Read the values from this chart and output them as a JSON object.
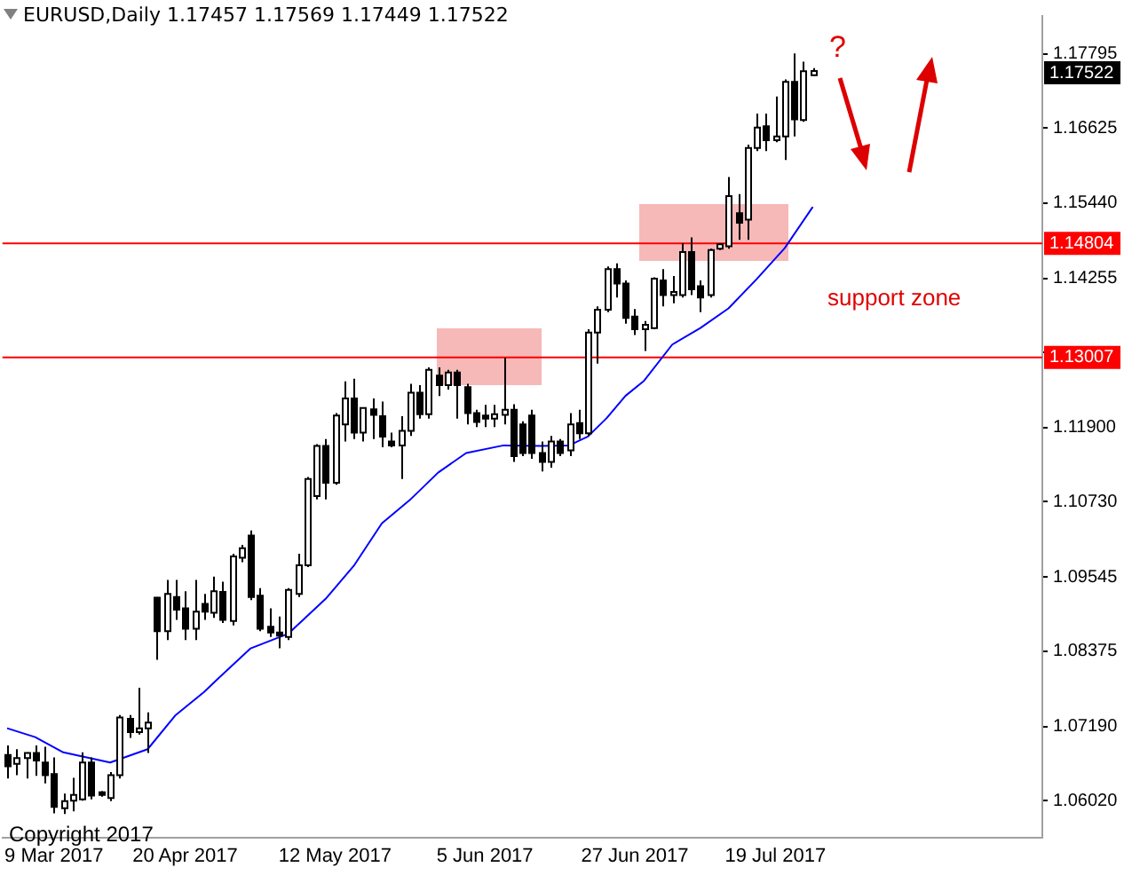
{
  "chart_data": {
    "type": "candlestick",
    "title": "EURUSD,Daily 1.17457 1.17569 1.17449 1.17522",
    "categories": [
      null,
      null,
      null,
      null,
      null,
      "9 Mar 2017",
      null,
      null,
      null,
      null,
      null,
      null,
      null,
      null,
      null,
      null,
      null,
      null,
      null,
      "20 Apr 2017",
      null,
      null,
      null,
      null,
      null,
      null,
      null,
      null,
      null,
      null,
      null,
      null,
      null,
      null,
      null,
      "12 May 2017",
      null,
      null,
      null,
      null,
      null,
      null,
      null,
      null,
      null,
      null,
      null,
      null,
      null,
      null,
      null,
      "5 Jun 2017",
      null,
      null,
      null,
      null,
      null,
      null,
      null,
      null,
      null,
      null,
      null,
      null,
      null,
      null,
      null,
      "27 Jun 2017",
      null,
      null,
      null,
      null,
      null,
      null,
      null,
      null,
      null,
      null,
      null,
      null,
      null,
      null,
      "19 Jul 2017",
      null,
      null,
      null,
      null,
      null,
      null,
      null,
      null,
      null,
      null,
      null,
      null,
      null,
      null,
      null,
      null,
      null,
      null,
      null,
      null,
      null,
      null,
      null,
      null,
      null,
      null,
      null,
      null
    ],
    "ohlc": [
      [
        1.0674,
        1.0689,
        1.0637,
        1.0656
      ],
      [
        1.066,
        1.0683,
        1.0642,
        1.0669
      ],
      [
        1.0669,
        1.0678,
        1.0637,
        1.0677
      ],
      [
        1.0677,
        1.0689,
        1.0641,
        1.0665
      ],
      [
        1.0662,
        1.0687,
        1.0629,
        1.0642
      ],
      [
        1.0644,
        1.067,
        1.0582,
        1.0592
      ],
      [
        1.059,
        1.0613,
        1.0581,
        1.0601
      ],
      [
        1.0602,
        1.0638,
        1.0585,
        1.0611
      ],
      [
        1.0604,
        1.0678,
        1.0602,
        1.0662
      ],
      [
        1.0662,
        1.067,
        1.0604,
        1.061
      ],
      [
        1.0615,
        1.0617,
        1.0608,
        1.0611
      ],
      [
        1.0606,
        1.0647,
        1.0601,
        1.0642
      ],
      [
        1.0642,
        1.0737,
        1.0637,
        1.0733
      ],
      [
        1.0731,
        1.0737,
        1.0701,
        1.071
      ],
      [
        1.071,
        1.078,
        1.0706,
        1.0716
      ],
      [
        1.0716,
        1.0741,
        1.0677,
        1.0725
      ],
      [
        1.0922,
        1.0923,
        1.0824,
        1.0869
      ],
      [
        1.0869,
        1.095,
        1.0855,
        1.0928
      ],
      [
        1.0923,
        1.095,
        1.0887,
        1.0903
      ],
      [
        1.0905,
        1.0932,
        1.0855,
        1.0873
      ],
      [
        1.0873,
        1.095,
        1.0855,
        1.09
      ],
      [
        1.0912,
        1.0928,
        1.0887,
        1.09
      ],
      [
        1.0898,
        1.0955,
        1.089,
        1.0932
      ],
      [
        1.0931,
        1.0947,
        1.0882,
        1.0887
      ],
      [
        1.0885,
        1.0991,
        1.0878,
        1.0987
      ],
      [
        1.0985,
        1.1005,
        1.0978,
        1.1
      ],
      [
        1.102,
        1.1028,
        1.0918,
        1.0923
      ],
      [
        1.0925,
        1.0937,
        1.0869,
        1.0873
      ],
      [
        1.0876,
        1.0905,
        1.086,
        1.0867
      ],
      [
        1.0867,
        1.0892,
        1.0842,
        1.0862
      ],
      [
        1.086,
        1.0937,
        1.0855,
        1.0934
      ],
      [
        1.0928,
        1.0991,
        1.0923,
        1.0973
      ],
      [
        1.0973,
        1.1112,
        1.097,
        1.1109
      ],
      [
        1.1082,
        1.1164,
        1.1077,
        1.1161
      ],
      [
        1.1161,
        1.1172,
        1.1077,
        1.1103
      ],
      [
        1.1103,
        1.1213,
        1.11,
        1.1209
      ],
      [
        1.1195,
        1.1263,
        1.1168,
        1.1236
      ],
      [
        1.1236,
        1.1267,
        1.1172,
        1.1182
      ],
      [
        1.1182,
        1.1222,
        1.1168,
        1.1221
      ],
      [
        1.1219,
        1.1236,
        1.1172,
        1.121
      ],
      [
        1.1208,
        1.1231,
        1.1159,
        1.1176
      ],
      [
        1.1168,
        1.1182,
        1.1159,
        1.1162
      ],
      [
        1.1162,
        1.1208,
        1.1109,
        1.1185
      ],
      [
        1.1185,
        1.1259,
        1.1177,
        1.1245
      ],
      [
        1.1245,
        1.1257,
        1.1204,
        1.1211
      ],
      [
        1.1211,
        1.1285,
        1.1204,
        1.1281
      ],
      [
        1.1272,
        1.1285,
        1.124,
        1.1257
      ],
      [
        1.1257,
        1.1281,
        1.125,
        1.1277
      ],
      [
        1.1277,
        1.1281,
        1.1204,
        1.1257
      ],
      [
        1.1254,
        1.1259,
        1.1195,
        1.1213
      ],
      [
        1.1213,
        1.1218,
        1.1191,
        1.1199
      ],
      [
        1.1209,
        1.1226,
        1.1191,
        1.1204
      ],
      [
        1.1204,
        1.1226,
        1.1191,
        1.1211
      ],
      [
        1.121,
        1.13,
        1.1195,
        1.1218
      ],
      [
        1.1218,
        1.1227,
        1.1136,
        1.1145
      ],
      [
        1.1195,
        1.12,
        1.1145,
        1.115
      ],
      [
        1.1209,
        1.1218,
        1.1141,
        1.115
      ],
      [
        1.115,
        1.1168,
        1.1121,
        1.1136
      ],
      [
        1.1136,
        1.1177,
        1.1127,
        1.1168
      ],
      [
        1.1168,
        1.1172,
        1.1145,
        1.115
      ],
      [
        1.1154,
        1.1213,
        1.1145,
        1.1195
      ],
      [
        1.1197,
        1.1218,
        1.1172,
        1.1181
      ],
      [
        1.1181,
        1.1345,
        1.1177,
        1.134
      ],
      [
        1.134,
        1.1381,
        1.1291,
        1.1376
      ],
      [
        1.1376,
        1.1444,
        1.1372,
        1.144
      ],
      [
        1.144,
        1.1449,
        1.1395,
        1.1417
      ],
      [
        1.1417,
        1.1422,
        1.1354,
        1.1363
      ],
      [
        1.1365,
        1.1377,
        1.1336,
        1.1345
      ],
      [
        1.1345,
        1.1358,
        1.1311,
        1.1352
      ],
      [
        1.1347,
        1.1427,
        1.1345,
        1.1425
      ],
      [
        1.1422,
        1.144,
        1.1381,
        1.1399
      ],
      [
        1.1399,
        1.1429,
        1.1386,
        1.1404
      ],
      [
        1.1399,
        1.1481,
        1.1395,
        1.1467
      ],
      [
        1.1467,
        1.149,
        1.1399,
        1.1408
      ],
      [
        1.1413,
        1.1422,
        1.1372,
        1.1395
      ],
      [
        1.1399,
        1.1472,
        1.1395,
        1.147
      ],
      [
        1.1472,
        1.1481,
        1.147,
        1.1479
      ],
      [
        1.1476,
        1.1585,
        1.1472,
        1.1555
      ],
      [
        1.1528,
        1.1558,
        1.1486,
        1.1513
      ],
      [
        1.1518,
        1.1636,
        1.1486,
        1.1631
      ],
      [
        1.1631,
        1.1685,
        1.1626,
        1.1663
      ],
      [
        1.1665,
        1.1685,
        1.1626,
        1.1643
      ],
      [
        1.1643,
        1.1712,
        1.164,
        1.1649
      ],
      [
        1.1649,
        1.1739,
        1.1612,
        1.1735
      ],
      [
        1.1735,
        1.178,
        1.1649,
        1.1676
      ],
      [
        1.1675,
        1.1767,
        1.1672,
        1.1752
      ],
      [
        1.17457,
        1.17569,
        1.17449,
        1.17522
      ],
      null,
      null,
      null,
      null,
      null,
      null,
      null,
      null,
      null,
      null,
      null,
      null,
      null,
      null,
      null,
      null,
      null,
      null,
      null,
      null,
      null,
      null,
      null,
      null
    ],
    "series": [
      {
        "type": "line",
        "color": "#0000ff",
        "values": [
          1.0716,
          null,
          null,
          1.0702,
          null,
          null,
          1.0678,
          null,
          null,
          null,
          null,
          1.0662,
          null,
          null,
          null,
          1.0683,
          null,
          null,
          1.0737,
          null,
          null,
          1.0773,
          null,
          1.0801,
          null,
          null,
          1.0842,
          null,
          null,
          null,
          1.0865,
          null,
          null,
          null,
          1.092,
          null,
          null,
          1.0972,
          null,
          null,
          1.1039,
          null,
          null,
          1.1076,
          null,
          null,
          1.1119,
          null,
          null,
          1.115,
          null,
          null,
          null,
          1.1162,
          null,
          null,
          null,
          1.1161,
          null,
          null,
          1.1162,
          null,
          1.1176,
          null,
          1.1205,
          null,
          1.124,
          null,
          1.1264,
          null,
          null,
          1.1321,
          null,
          null,
          1.1347,
          null,
          null,
          1.1378,
          null,
          null,
          1.1424,
          null,
          null,
          1.1473,
          null,
          null,
          1.1538,
          null,
          null,
          null,
          null,
          null,
          null,
          null,
          null,
          null,
          null,
          null,
          null,
          null,
          null,
          null,
          null,
          null,
          null,
          null,
          null,
          null,
          null,
          null,
          null
        ]
      }
    ],
    "ylim": [
      1.0544,
      1.1839
    ],
    "yticks": [
      1.17795,
      1.16625,
      {
        "value": 1.1544,
        "label": "1.15440"
      },
      1.14255,
      {
        "value": 1.13085,
        "label": null
      },
      {
        "value": 1.119,
        "label": "1.11900"
      },
      {
        "value": 1.1073,
        "label": "1.10730"
      },
      1.09545,
      1.08375,
      {
        "value": 1.0719,
        "label": "1.07190"
      },
      {
        "value": 1.0602,
        "label": "1.06020"
      }
    ],
    "ref_lines": [
      {
        "axis": "y",
        "value": 1.14804,
        "label": "1.14804",
        "color": "#ff0000"
      },
      {
        "axis": "y",
        "value": 1.13007,
        "label": "1.13007",
        "color": "#ff0000"
      }
    ],
    "annotations": [
      "?",
      "support zone",
      "Copyright 2017",
      "1.17522"
    ],
    "grid": false,
    "legend": false,
    "marker": "none"
  }
}
